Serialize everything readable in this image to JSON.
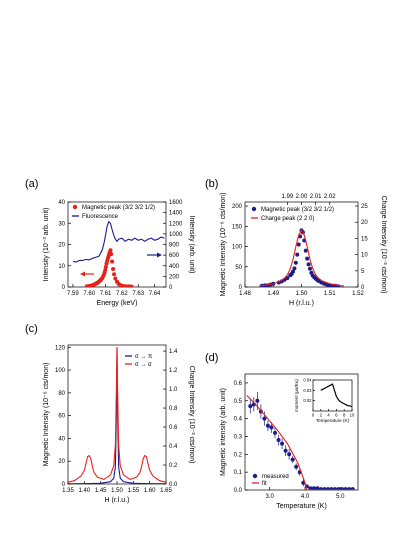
{
  "chart_data": [
    {
      "id": "a",
      "panel_label": "(a)",
      "type": "line",
      "xlabel": "Energy (keV)",
      "ylabel": "Intensity (10⁻³ arb. unit)",
      "y2label": "Intensity (arb. unit)",
      "xlim": [
        7.587,
        7.647
      ],
      "ylim": [
        0,
        40
      ],
      "y2lim": [
        0,
        1600
      ],
      "xticks": [
        "7.59",
        "7.60",
        "7.61",
        "7.62",
        "7.63",
        "7.64"
      ],
      "yticks": [
        "0",
        "10",
        "20",
        "30",
        "40"
      ],
      "y2ticks": [
        "0",
        "200",
        "400",
        "600",
        "800",
        "1000",
        "1200",
        "1400",
        "1600"
      ],
      "series": [
        {
          "name": "Magnetic peak (3/2 3/2 1/2)",
          "kind": "scatter",
          "axis": "left",
          "color": "#e8221b",
          "x": [
            7.5985,
            7.5995,
            7.6005,
            7.6012,
            7.6018,
            7.6024,
            7.603,
            7.6036,
            7.6042,
            7.6048,
            7.6054,
            7.606,
            7.6066,
            7.6072,
            7.6078,
            7.6084,
            7.609,
            7.6094,
            7.6098,
            7.6102,
            7.6106,
            7.611,
            7.6114,
            7.6118,
            7.6122,
            7.6126,
            7.613,
            7.6134,
            7.614,
            7.6146,
            7.6152,
            7.616,
            7.617,
            7.618,
            7.619,
            7.62,
            7.6215,
            7.623,
            7.6245,
            7.626
          ],
          "y": [
            0.3,
            0.4,
            0.5,
            0.6,
            0.8,
            0.9,
            1.1,
            1.4,
            1.6,
            1.9,
            2.2,
            2.6,
            3.0,
            3.5,
            4.0,
            4.8,
            5.8,
            6.8,
            8.0,
            9.5,
            11.0,
            12.3,
            13.5,
            14.5,
            15.5,
            16.5,
            17.3,
            15.5,
            12.0,
            8.5,
            6.0,
            4.0,
            2.5,
            1.5,
            0.9,
            0.6,
            0.4,
            0.3,
            0.3,
            0.2
          ]
        },
        {
          "name": "Fluorescence",
          "kind": "line",
          "axis": "right",
          "color": "#1c1c8c",
          "x": [
            7.59,
            7.592,
            7.594,
            7.596,
            7.598,
            7.6,
            7.602,
            7.604,
            7.606,
            7.607,
            7.608,
            7.609,
            7.61,
            7.611,
            7.612,
            7.613,
            7.614,
            7.615,
            7.616,
            7.617,
            7.618,
            7.62,
            7.622,
            7.624,
            7.626,
            7.628,
            7.63,
            7.632,
            7.634,
            7.636,
            7.638,
            7.64,
            7.642,
            7.644,
            7.646
          ],
          "y": [
            480,
            470,
            500,
            500,
            520,
            510,
            540,
            560,
            580,
            640,
            700,
            820,
            980,
            1150,
            1230,
            1200,
            1080,
            980,
            900,
            860,
            900,
            920,
            860,
            900,
            880,
            920,
            880,
            900,
            860,
            900,
            920,
            880,
            900,
            940,
            920
          ]
        }
      ],
      "legend_position": "top-left"
    },
    {
      "id": "b",
      "panel_label": "(b)",
      "type": "scatter",
      "xlabel": "H (r.l.u.)",
      "ylabel": "Magnetic Intensity (10⁻⁶ cts/mon)",
      "y2label": "Charge Intensity (10⁻³ cts/mon)",
      "xlim": [
        1.48,
        1.52
      ],
      "ylim": [
        0,
        210
      ],
      "y2lim": [
        0,
        26.25
      ],
      "x2lim": [
        1.96,
        2.04
      ],
      "xticks": [
        "1.48",
        "1.49",
        "1.50",
        "1.51",
        "1.52"
      ],
      "x2ticks": [
        "1.99",
        "2.00",
        "2.01",
        "2.02"
      ],
      "yticks": [
        "0",
        "50",
        "100",
        "150",
        "200"
      ],
      "y2ticks": [
        "0",
        "5",
        "10",
        "15",
        "20",
        "25"
      ],
      "series": [
        {
          "name": "Magnetic peak (3/2 3/2 1/2)",
          "kind": "scatter",
          "axis": "left",
          "color": "#1c1c8c",
          "x": [
            1.486,
            1.487,
            1.488,
            1.489,
            1.49,
            1.492,
            1.493,
            1.494,
            1.495,
            1.496,
            1.4965,
            1.497,
            1.4975,
            1.498,
            1.4985,
            1.499,
            1.4995,
            1.5,
            1.5005,
            1.501,
            1.5015,
            1.502,
            1.5025,
            1.503,
            1.5035,
            1.504,
            1.5045,
            1.505,
            1.5055,
            1.506,
            1.507,
            1.508,
            1.509,
            1.51,
            1.511,
            1.512,
            1.513
          ],
          "y": [
            3,
            4,
            4,
            6,
            8,
            11,
            14,
            18,
            22,
            29,
            32,
            38,
            46,
            60,
            80,
            105,
            125,
            140,
            135,
            115,
            90,
            70,
            56,
            45,
            35,
            28,
            24,
            21,
            18,
            15,
            11,
            8,
            6,
            4,
            3,
            3,
            2
          ]
        },
        {
          "name": "Charge peak (2 2 0)",
          "kind": "line",
          "axis": "top-right",
          "color": "#e8221b",
          "x": [
            1.97,
            1.975,
            1.98,
            1.985,
            1.988,
            1.99,
            1.992,
            1.994,
            1.996,
            1.998,
            2.0,
            2.002,
            2.004,
            2.006,
            2.008,
            2.01,
            2.012,
            2.015,
            2.02,
            2.025,
            2.03
          ],
          "y": [
            0.3,
            0.6,
            1.0,
            1.8,
            2.7,
            3.8,
            5.6,
            8.5,
            12.5,
            16.0,
            17.6,
            16.0,
            12.5,
            8.5,
            5.6,
            3.8,
            2.7,
            1.8,
            1.0,
            0.6,
            0.3
          ]
        }
      ],
      "legend_position": "top"
    },
    {
      "id": "c",
      "panel_label": "(c)",
      "type": "line",
      "xlabel": "H (r.l.u.)",
      "ylabel": "Magnetic Intensity (10⁻⁶ cts/mon)",
      "y2label": "Charge Intensity (10⁻³ cts/mon)",
      "xlim": [
        1.35,
        1.65
      ],
      "ylim": [
        0,
        122
      ],
      "y2lim": [
        0,
        1.464
      ],
      "xticks": [
        "1.35",
        "1.40",
        "1.45",
        "1.50",
        "1.55",
        "1.60",
        "1.65"
      ],
      "yticks": [
        "0",
        "20",
        "40",
        "60",
        "80",
        "100",
        "120"
      ],
      "y2ticks": [
        "0.0",
        "0.2",
        "0.4",
        "0.6",
        "0.8",
        "1.0",
        "1.2",
        "1.4"
      ],
      "series": [
        {
          "name": "σ → π",
          "kind": "line",
          "axis": "left",
          "color": "#1c1c8c",
          "x": [
            1.35,
            1.4,
            1.45,
            1.48,
            1.49,
            1.495,
            1.498,
            1.5,
            1.502,
            1.505,
            1.51,
            1.52,
            1.55,
            1.6,
            1.65
          ],
          "y": [
            0.2,
            0.3,
            0.6,
            2,
            5,
            15,
            60,
            120,
            60,
            15,
            5,
            2,
            0.6,
            0.3,
            0.2
          ]
        },
        {
          "name": "σ → σ",
          "kind": "line",
          "axis": "left",
          "color": "#e8221b",
          "x": [
            1.35,
            1.37,
            1.39,
            1.4,
            1.405,
            1.41,
            1.415,
            1.42,
            1.425,
            1.43,
            1.44,
            1.46,
            1.48,
            1.49,
            1.495,
            1.498,
            1.5,
            1.502,
            1.505,
            1.51,
            1.52,
            1.54,
            1.56,
            1.57,
            1.575,
            1.58,
            1.585,
            1.59,
            1.595,
            1.6,
            1.61,
            1.63,
            1.65
          ],
          "y": [
            1.5,
            3,
            7,
            12,
            18,
            24,
            25,
            22,
            15,
            10,
            6,
            4,
            8,
            16,
            34,
            80,
            120,
            80,
            34,
            16,
            8,
            4,
            6,
            10,
            15,
            22,
            25,
            24,
            18,
            12,
            7,
            3,
            1.5
          ]
        }
      ],
      "legend_position": "top-right"
    },
    {
      "id": "d",
      "panel_label": "(d)",
      "type": "scatter",
      "xlabel": "Temperature (K)",
      "ylabel": "Magnetic intensity (arb. unit)",
      "xlim": [
        2.3,
        5.5
      ],
      "ylim": [
        0,
        0.65
      ],
      "xticks": [
        "3.0",
        "4.0",
        "5.0"
      ],
      "yticks": [
        "0.0",
        "0.1",
        "0.2",
        "0.3",
        "0.4",
        "0.5",
        "0.6"
      ],
      "series": [
        {
          "name": "measured",
          "kind": "scatter",
          "axis": "left",
          "color": "#1c1c8c",
          "x": [
            2.45,
            2.55,
            2.65,
            2.75,
            2.85,
            2.95,
            3.05,
            3.15,
            3.25,
            3.35,
            3.45,
            3.55,
            3.65,
            3.75,
            3.85,
            3.95,
            4.05,
            4.15,
            4.25,
            4.35,
            4.45,
            4.55,
            4.65,
            4.75,
            4.85,
            4.95,
            5.05,
            5.15,
            5.25,
            5.35
          ],
          "y": [
            0.47,
            0.48,
            0.5,
            0.44,
            0.4,
            0.36,
            0.35,
            0.32,
            0.28,
            0.26,
            0.22,
            0.2,
            0.17,
            0.13,
            0.1,
            0.04,
            0.02,
            0.01,
            0.01,
            0.01,
            0.005,
            0.005,
            0.005,
            0.005,
            0.005,
            0.005,
            0.005,
            0.005,
            0.005,
            0.005
          ],
          "yerr": [
            0.04,
            0.04,
            0.05,
            0.04,
            0.04,
            0.03,
            0.03,
            0.03,
            0.03,
            0.03,
            0.03,
            0.03,
            0.02,
            0.02,
            0.02,
            0.02,
            0.01,
            0,
            0,
            0,
            0,
            0,
            0,
            0,
            0,
            0,
            0,
            0,
            0,
            0
          ]
        },
        {
          "name": "fit",
          "kind": "line",
          "axis": "left",
          "color": "#e8221b",
          "x": [
            2.35,
            2.6,
            2.9,
            3.2,
            3.5,
            3.8,
            4.0,
            4.05,
            5.4
          ],
          "y": [
            0.53,
            0.48,
            0.41,
            0.34,
            0.26,
            0.15,
            0.04,
            0,
            0
          ]
        }
      ],
      "legend_position": "bottom-left",
      "inset": {
        "type": "line",
        "xlabel": "Temperature (K)",
        "ylabel": "moment (μʙ/Eu)",
        "xlim": [
          0,
          10
        ],
        "ylim": [
          0.01,
          0.04
        ],
        "xticks": [
          "0",
          "2",
          "4",
          "6",
          "8",
          "10"
        ],
        "yticks": [
          "0.02",
          "0.03",
          "0.04"
        ],
        "series": [
          {
            "name": "moment",
            "kind": "line",
            "color": "#000000",
            "x": [
              2,
              2.5,
              3,
              3.5,
              4,
              4.5,
              5,
              5.5,
              6,
              6.5,
              7,
              7.5,
              8,
              8.5,
              9,
              9.5,
              10
            ],
            "y": [
              0.03,
              0.031,
              0.032,
              0.033,
              0.034,
              0.035,
              0.036,
              0.03,
              0.024,
              0.021,
              0.019,
              0.018,
              0.017,
              0.016,
              0.015,
              0.015,
              0.014
            ]
          }
        ]
      }
    }
  ]
}
